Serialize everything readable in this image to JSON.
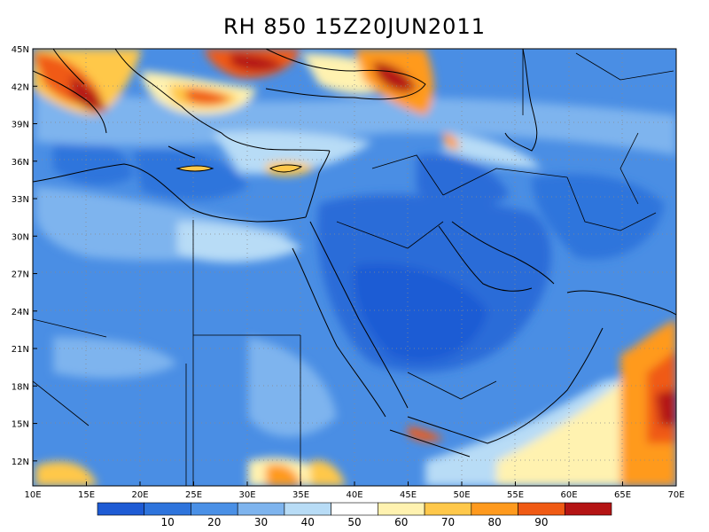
{
  "title": "RH 850  15Z20JUN2011",
  "map": {
    "lon_range": [
      10,
      70
    ],
    "lat_range": [
      10,
      45
    ],
    "lat_labels": [
      "45N",
      "42N",
      "39N",
      "36N",
      "33N",
      "30N",
      "27N",
      "24N",
      "21N",
      "18N",
      "15N",
      "12N"
    ],
    "lon_labels": [
      "10E",
      "15E",
      "20E",
      "25E",
      "30E",
      "35E",
      "40E",
      "45E",
      "50E",
      "55E",
      "60E",
      "65E",
      "70E"
    ],
    "grid": "dotted"
  },
  "colorbar": {
    "labels": [
      "10",
      "20",
      "30",
      "40",
      "50",
      "60",
      "70",
      "80",
      "90"
    ],
    "colors": [
      "#1e5bd4",
      "#2e74dc",
      "#4a90e6",
      "#7eb4ee",
      "#b8dcf6",
      "#ffffff",
      "#fff2b0",
      "#ffc84a",
      "#ff9a1e",
      "#f05a14",
      "#b41414"
    ]
  }
}
